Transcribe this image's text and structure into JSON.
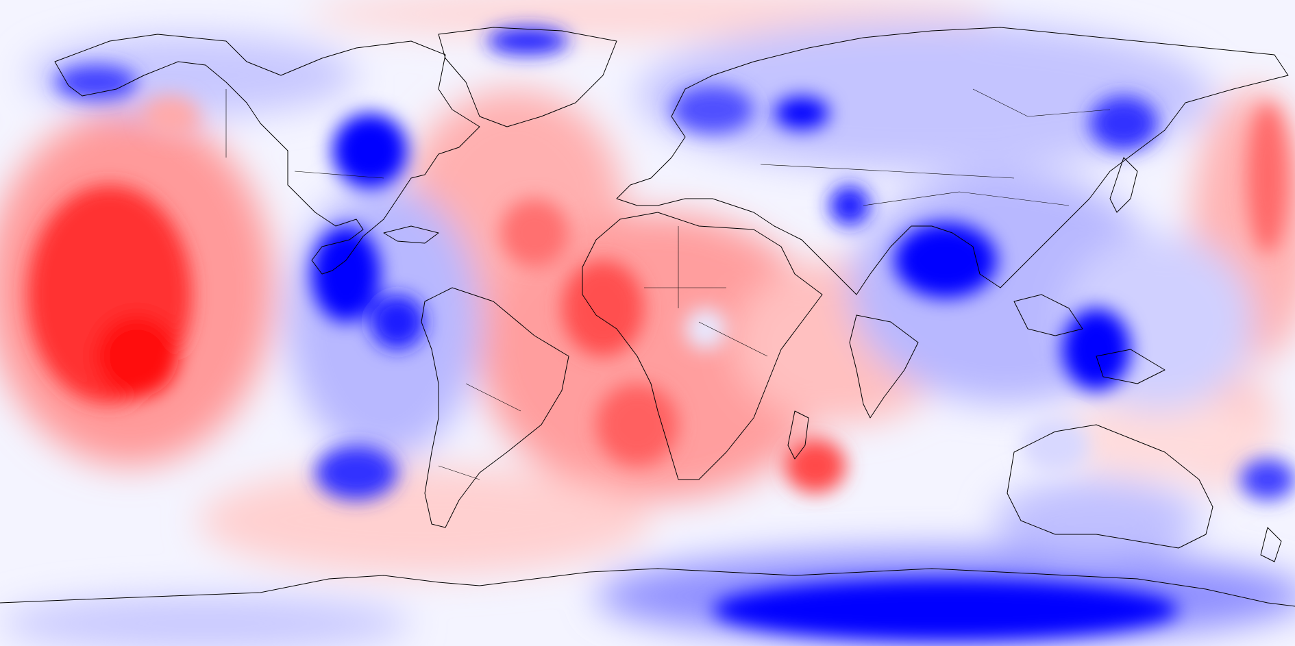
{
  "map": {
    "projection": "equirectangular",
    "view": "global",
    "colormap": {
      "negative": "#0000ff",
      "neutral": "#ffffff",
      "positive": "#ff0000"
    },
    "coastline_color": "#000000"
  }
}
